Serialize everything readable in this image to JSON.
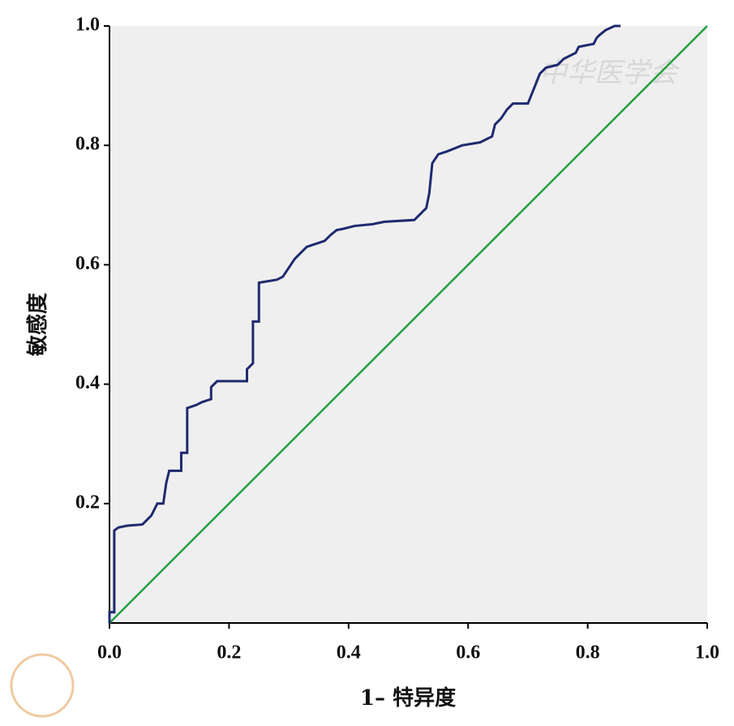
{
  "chart_data": {
    "type": "line",
    "xlabel": "1– 特异度",
    "ylabel": "敏感度",
    "watermark": "中华医学会",
    "xlim": [
      0,
      1
    ],
    "ylim": [
      0,
      1
    ],
    "xticks": [
      {
        "value": 0,
        "label": "0.0"
      },
      0.2,
      0.4,
      0.6,
      0.8,
      {
        "value": 1,
        "label": "1.0"
      }
    ],
    "yticks": [
      0.2,
      0.4,
      0.6,
      0.8,
      {
        "value": 1,
        "label": "1.0"
      }
    ],
    "background": "#efefef",
    "series": [
      {
        "color": "#1f2a6e",
        "x": [
          0,
          0,
          0.008,
          0.008,
          0.015,
          0.03,
          0.055,
          0.06,
          0.07,
          0.08,
          0.09,
          0.095,
          0.1,
          0.12,
          0.12,
          0.13,
          0.13,
          0.145,
          0.155,
          0.17,
          0.17,
          0.18,
          0.23,
          0.23,
          0.24,
          0.24,
          0.25,
          0.25,
          0.28,
          0.29,
          0.3,
          0.31,
          0.32,
          0.33,
          0.36,
          0.37,
          0.38,
          0.39,
          0.41,
          0.44,
          0.46,
          0.51,
          0.52,
          0.53,
          0.535,
          0.54,
          0.55,
          0.565,
          0.59,
          0.62,
          0.64,
          0.645,
          0.655,
          0.665,
          0.675,
          0.7,
          0.71,
          0.72,
          0.73,
          0.75,
          0.76,
          0.78,
          0.785,
          0.81,
          0.815,
          0.82,
          0.83,
          0.845,
          0.855
        ],
        "values": [
          0,
          0.018,
          0.018,
          0.155,
          0.16,
          0.163,
          0.165,
          0.17,
          0.18,
          0.2,
          0.2,
          0.235,
          0.255,
          0.255,
          0.285,
          0.285,
          0.36,
          0.365,
          0.37,
          0.375,
          0.395,
          0.405,
          0.405,
          0.425,
          0.435,
          0.505,
          0.505,
          0.57,
          0.575,
          0.58,
          0.595,
          0.61,
          0.62,
          0.63,
          0.64,
          0.65,
          0.658,
          0.66,
          0.665,
          0.668,
          0.672,
          0.675,
          0.685,
          0.695,
          0.72,
          0.77,
          0.785,
          0.79,
          0.8,
          0.805,
          0.815,
          0.835,
          0.845,
          0.86,
          0.87,
          0.87,
          0.895,
          0.92,
          0.93,
          0.935,
          0.945,
          0.955,
          0.965,
          0.97,
          0.98,
          0.985,
          0.993,
          1.0,
          1.0
        ]
      },
      {
        "color": "#22a040",
        "x": [
          0,
          1
        ],
        "values": [
          0,
          1
        ]
      }
    ]
  }
}
